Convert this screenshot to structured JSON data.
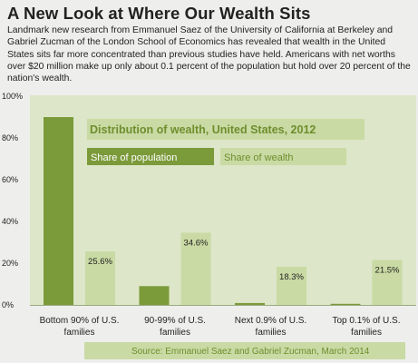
{
  "header": {
    "title": "A New Look at Where Our Wealth Sits",
    "description": "Landmark new research from Emmanuel Saez of the University of California at Berkeley and Gabriel Zucman of the London School of Economics has revealed that wealth in the United States sits far more concentrated than previous studies have held. Americans with net worths over $20 million make up only about 0.1 percent of the population but hold over 20 percent of the nation's wealth."
  },
  "colors": {
    "population": "#7b9a3a",
    "wealth": "#c9daa4",
    "panel": "#dde6c8",
    "background": "#eeeeec"
  },
  "chart_data": {
    "type": "bar",
    "title": "Distribution of wealth, United States, 2012",
    "categories": [
      "Bottom 90% of U.S. families",
      "90-99% of U.S. families",
      "Next 0.9% of U.S. families",
      "Top 0.1% of U.S. families"
    ],
    "category_lines": [
      [
        "Bottom 90% of U.S.",
        "families"
      ],
      [
        "90-99% of U.S.",
        "families"
      ],
      [
        "Next 0.9% of U.S.",
        "families"
      ],
      [
        "Top 0.1% of U.S.",
        "families"
      ]
    ],
    "series": [
      {
        "name": "Share of population",
        "values": [
          90,
          9,
          0.9,
          0.1
        ]
      },
      {
        "name": "Share of wealth",
        "values": [
          25.6,
          34.6,
          18.3,
          21.5
        ],
        "labels": [
          "25.6%",
          "34.6%",
          "18.3%",
          "21.5%"
        ]
      }
    ],
    "yticks": [
      "0%",
      "20%",
      "40%",
      "60%",
      "80%",
      "100%"
    ],
    "ylim": [
      0,
      100
    ],
    "legend_placement": "top",
    "source": "Source: Emmanuel Saez and Gabriel Zucman, March 2014"
  }
}
